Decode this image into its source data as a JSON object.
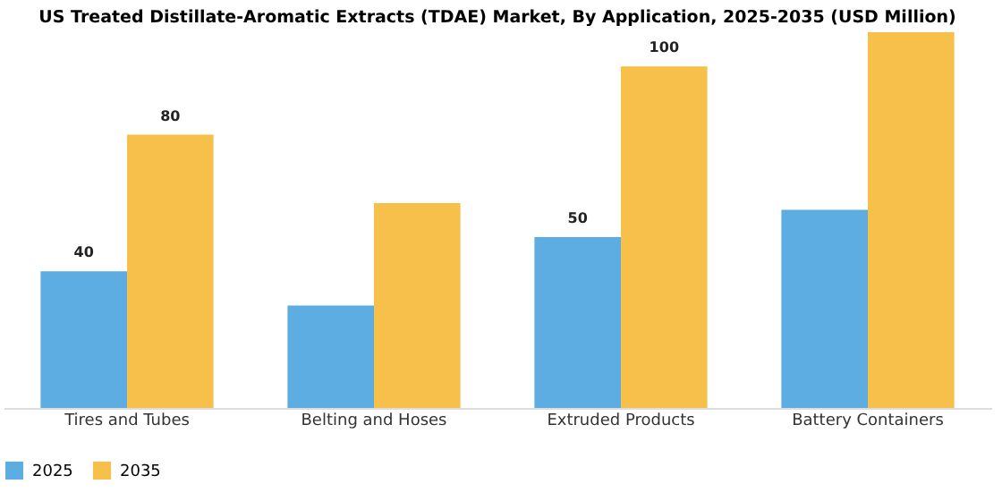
{
  "chart_data": {
    "type": "bar",
    "title": "US Treated Distillate-Aromatic Extracts (TDAE) Market, By Application, 2025-2035 (USD Million)",
    "categories": [
      "Tires and Tubes",
      "Belting and Hoses",
      "Extruded Products",
      "Battery Containers"
    ],
    "series": [
      {
        "name": "2025",
        "color": "#5dade2",
        "values": [
          40,
          30,
          50,
          58
        ],
        "value_labels": [
          "40",
          null,
          "50",
          null
        ]
      },
      {
        "name": "2035",
        "color": "#f7c04a",
        "values": [
          80,
          60,
          100,
          110
        ],
        "value_labels": [
          "80",
          null,
          "100",
          null
        ]
      }
    ],
    "legend": "bottom",
    "grid": false,
    "tick_labels": "x"
  }
}
